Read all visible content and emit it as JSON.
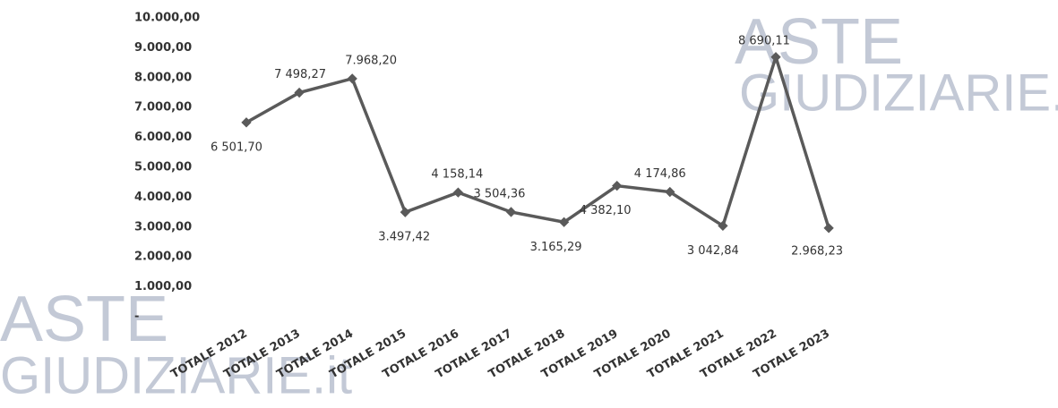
{
  "chart_data": {
    "type": "line",
    "watermark": [
      "ASTE",
      "GIUDIZIARIE.it"
    ],
    "categories": [
      "TOTALE 2012",
      "TOTALE 2013",
      "TOTALE 2014",
      "TOTALE 2015",
      "TOTALE 2016",
      "TOTALE 2017",
      "TOTALE 2018",
      "TOTALE 2019",
      "TOTALE 2020",
      "TOTALE 2021",
      "TOTALE 2022",
      "TOTALE 2023"
    ],
    "series": [
      {
        "color": "#5a5a5a",
        "values": [
          6501.7,
          7498.27,
          7968.2,
          3497.42,
          4158.14,
          3504.36,
          3165.29,
          4382.1,
          4174.86,
          3042.84,
          8690.11,
          2968.23
        ],
        "value_labels": [
          "6 501,70",
          "7 498,27",
          "7.968,20",
          "3.497,42",
          "4 158,14",
          "3 504,36",
          "3.165,29",
          "4 382,10",
          "4 174,86",
          "3 042,84",
          "8 690,11",
          "2.968,23"
        ]
      }
    ],
    "ylim": [
      0,
      10000
    ],
    "yticks": [
      {
        "value": 0,
        "label": "-"
      },
      {
        "value": 1000,
        "label": "1.000,00"
      },
      {
        "value": 2000,
        "label": "2.000,00"
      },
      {
        "value": 3000,
        "label": "3.000,00"
      },
      {
        "value": 4000,
        "label": "4.000,00"
      },
      {
        "value": 5000,
        "label": "5.000,00"
      },
      {
        "value": 6000,
        "label": "6.000,00"
      },
      {
        "value": 7000,
        "label": "7.000,00"
      },
      {
        "value": 8000,
        "label": "8.000,00"
      },
      {
        "value": 9000,
        "label": "9.000,00"
      },
      {
        "value": 10000,
        "label": "10.000,00"
      }
    ],
    "grid": false
  }
}
